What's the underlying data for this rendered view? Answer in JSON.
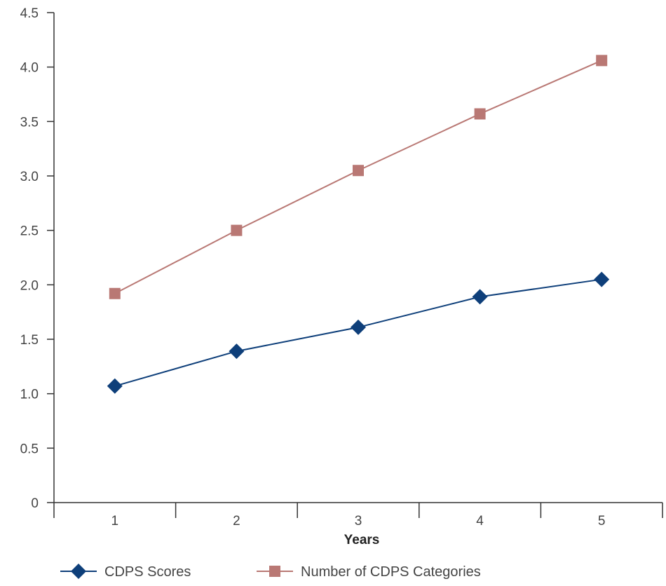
{
  "chart_data": {
    "type": "line",
    "title": "",
    "xlabel": "Years",
    "ylabel": "",
    "categories": [
      "1",
      "2",
      "3",
      "4",
      "5"
    ],
    "ylim": [
      0,
      4.5
    ],
    "yticks": [
      "0",
      "0.5",
      "1.0",
      "1.5",
      "2.0",
      "2.5",
      "3.0",
      "3.5",
      "4.0",
      "4.5"
    ],
    "grid": false,
    "legend_position": "bottom",
    "series": [
      {
        "name": "CDPS Scores",
        "values": [
          1.07,
          1.39,
          1.61,
          1.89,
          2.05
        ],
        "color": "#0e3f7a",
        "marker": "diamond"
      },
      {
        "name": "Number of CDPS Categories",
        "values": [
          1.92,
          2.5,
          3.05,
          3.57,
          4.06
        ],
        "color": "#b97874",
        "marker": "square"
      }
    ]
  }
}
